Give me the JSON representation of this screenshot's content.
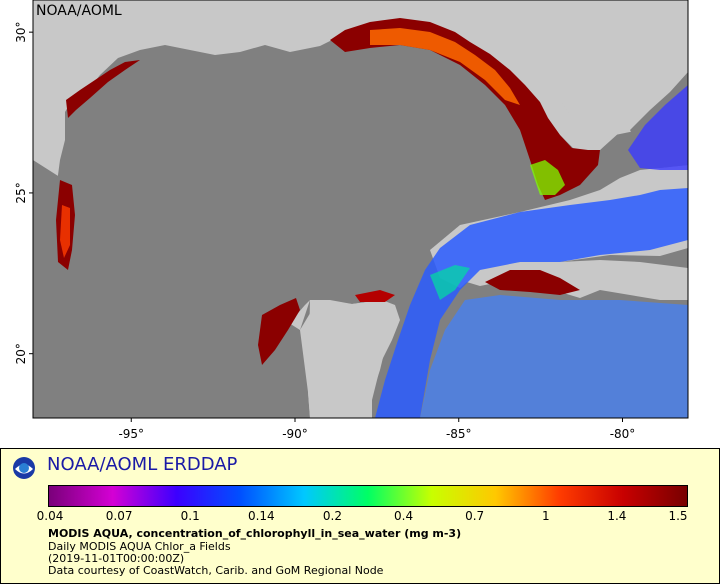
{
  "corner_label": "NOAA/AOML",
  "map": {
    "lat_ticks": [
      {
        "value": 30,
        "label": "30°"
      },
      {
        "value": 25,
        "label": "25°"
      },
      {
        "value": 20,
        "label": "20°"
      }
    ],
    "lon_ticks": [
      {
        "value": -95,
        "label": "-95°"
      },
      {
        "value": -90,
        "label": "-90°"
      },
      {
        "value": -85,
        "label": "-85°"
      },
      {
        "value": -80,
        "label": "-80°"
      }
    ],
    "lon_range": [
      -98,
      -78
    ],
    "lat_range": [
      18,
      31
    ],
    "colors": {
      "land": "#c8c8c8",
      "ocean_no_data": "#808080",
      "coastline": "#555555",
      "rivers": "#6a9ad6"
    }
  },
  "footer": {
    "title": "NOAA/AOML ERDDAP",
    "logo_icon": "noaa-logo",
    "colorbar_labels": [
      "0.04",
      "0.07",
      "0.1",
      "0.14",
      "0.2",
      "0.4",
      "0.7",
      "1",
      "1.4",
      "1.5"
    ],
    "colorbar_stops": [
      "#7a007a",
      "#d400d4",
      "#3c00ff",
      "#0050ff",
      "#00c8ff",
      "#00ff64",
      "#c8ff00",
      "#ffc800",
      "#ff3c00",
      "#c80000",
      "#780000"
    ],
    "caption_main": "MODIS AQUA, concentration_of_chlorophyll_in_sea_water (mg m-3)",
    "caption_lines": [
      "Daily MODIS AQUA Chlor_a Fields",
      "(2019-11-01T00:00:00Z)",
      "Data courtesy of CoastWatch, Carib. and GoM Regional Node"
    ],
    "background_color": "#ffffcc",
    "title_color": "#1a1aa6"
  }
}
